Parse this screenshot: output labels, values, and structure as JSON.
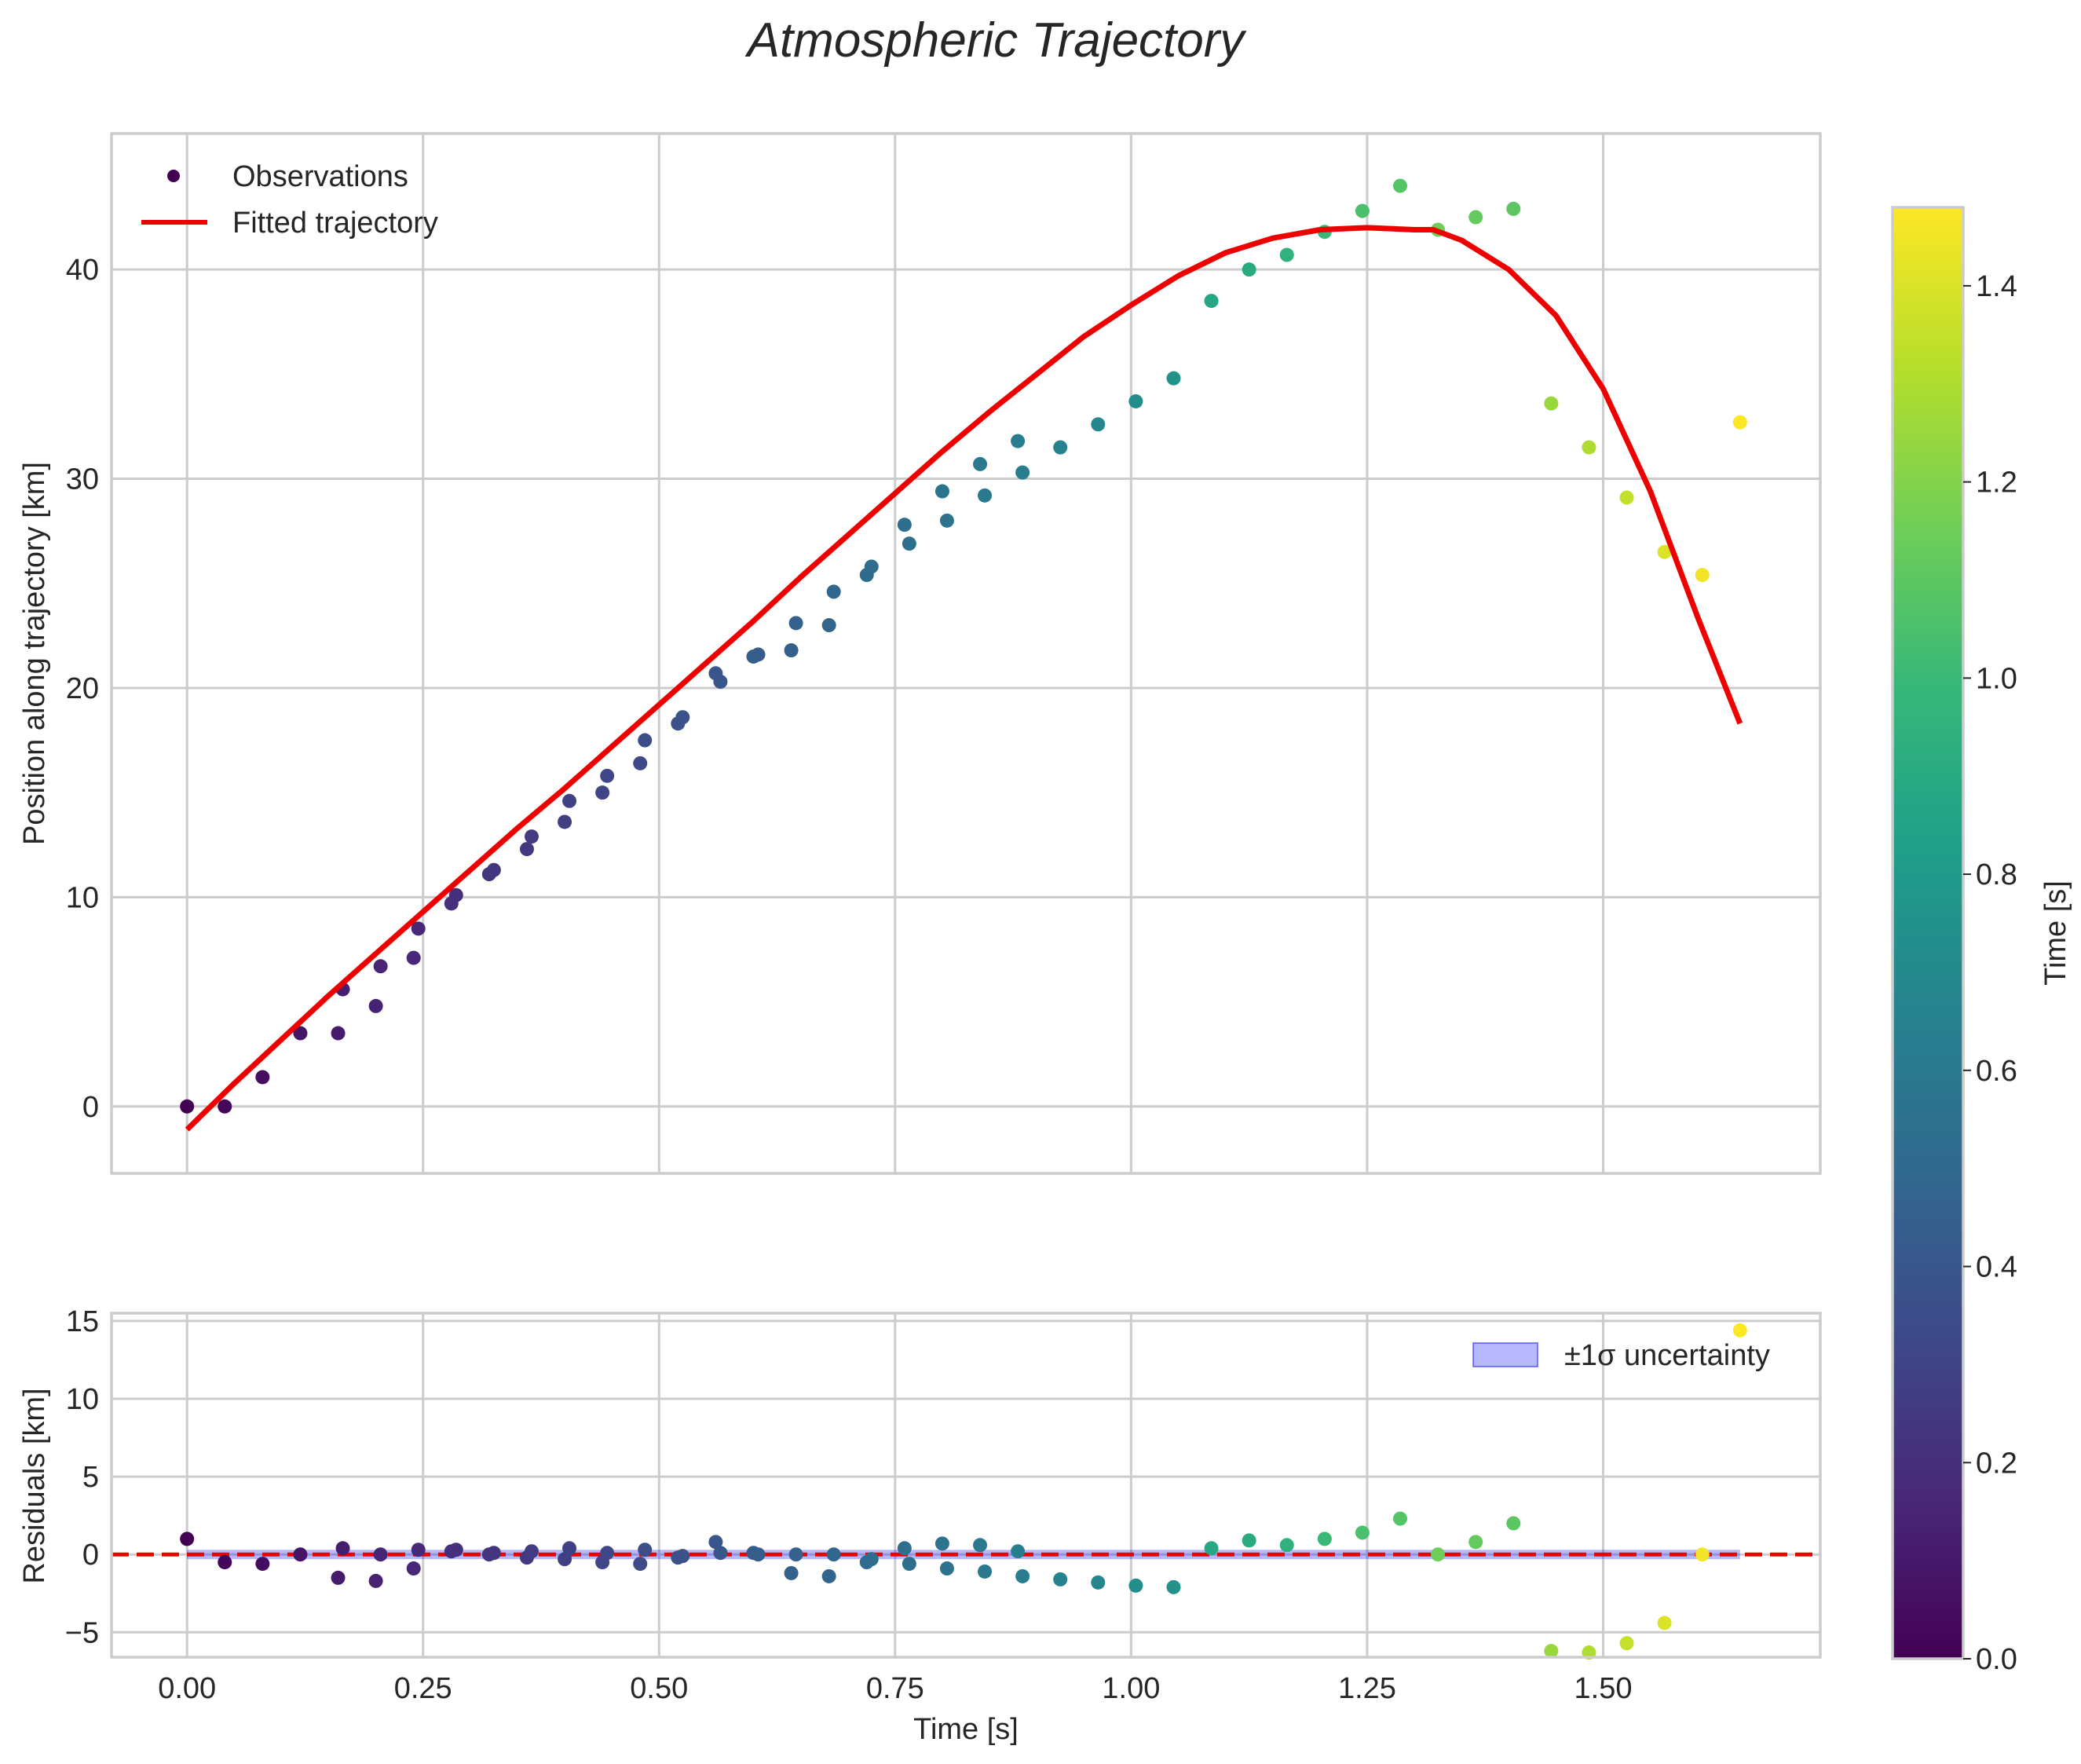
{
  "chart_data": [
    {
      "type": "scatter",
      "title": "Atmospheric Trajectory",
      "xlabel": "",
      "ylabel": "Position along trajectory [km]",
      "xlim": [
        -0.08,
        1.73
      ],
      "ylim": [
        -3.2,
        46.5
      ],
      "xticks": [
        0.0,
        0.25,
        0.5,
        0.75,
        1.0,
        1.25,
        1.5
      ],
      "yticks": [
        0,
        10,
        20,
        30,
        40
      ],
      "ytick_labels": [
        "0",
        "10",
        "20",
        "30",
        "40"
      ],
      "grid": true,
      "legend": {
        "position": "top-left",
        "entries": [
          "Observations",
          "Fitted trajectory"
        ]
      },
      "series": [
        {
          "name": "Observations",
          "kind": "scatter",
          "colormap": "viridis",
          "color_by": "time",
          "points": [
            [
              0.0,
              0.0,
              0.0
            ],
            [
              0.04,
              0.0,
              0.02
            ],
            [
              0.08,
              1.4,
              0.05
            ],
            [
              0.12,
              3.5,
              0.08
            ],
            [
              0.16,
              3.5,
              0.11
            ],
            [
              0.165,
              5.6,
              0.12
            ],
            [
              0.2,
              4.8,
              0.14
            ],
            [
              0.205,
              6.7,
              0.15
            ],
            [
              0.24,
              7.1,
              0.17
            ],
            [
              0.245,
              8.5,
              0.17
            ],
            [
              0.28,
              9.7,
              0.2
            ],
            [
              0.285,
              10.1,
              0.2
            ],
            [
              0.32,
              11.1,
              0.23
            ],
            [
              0.325,
              11.3,
              0.23
            ],
            [
              0.36,
              12.3,
              0.25
            ],
            [
              0.365,
              12.9,
              0.26
            ],
            [
              0.4,
              13.6,
              0.28
            ],
            [
              0.405,
              14.6,
              0.29
            ],
            [
              0.44,
              15.0,
              0.31
            ],
            [
              0.445,
              15.8,
              0.32
            ],
            [
              0.48,
              16.4,
              0.34
            ],
            [
              0.485,
              17.5,
              0.35
            ],
            [
              0.52,
              18.3,
              0.37
            ],
            [
              0.525,
              18.6,
              0.37
            ],
            [
              0.56,
              20.7,
              0.4
            ],
            [
              0.565,
              20.3,
              0.4
            ],
            [
              0.6,
              21.5,
              0.43
            ],
            [
              0.605,
              21.6,
              0.43
            ],
            [
              0.64,
              21.8,
              0.45
            ],
            [
              0.645,
              23.1,
              0.46
            ],
            [
              0.68,
              23.0,
              0.48
            ],
            [
              0.685,
              24.6,
              0.49
            ],
            [
              0.72,
              25.4,
              0.51
            ],
            [
              0.725,
              25.8,
              0.52
            ],
            [
              0.76,
              27.8,
              0.54
            ],
            [
              0.765,
              26.9,
              0.54
            ],
            [
              0.8,
              29.4,
              0.57
            ],
            [
              0.805,
              28.0,
              0.57
            ],
            [
              0.84,
              30.7,
              0.6
            ],
            [
              0.845,
              29.2,
              0.6
            ],
            [
              0.88,
              31.8,
              0.63
            ],
            [
              0.885,
              30.3,
              0.63
            ],
            [
              0.925,
              31.5,
              0.66
            ],
            [
              0.965,
              32.6,
              0.69
            ],
            [
              1.005,
              33.7,
              0.72
            ],
            [
              1.045,
              34.8,
              0.75
            ],
            [
              1.085,
              38.5,
              0.88
            ],
            [
              1.125,
              40.0,
              0.9
            ],
            [
              1.165,
              40.7,
              0.95
            ],
            [
              1.205,
              41.8,
              1.0
            ],
            [
              1.245,
              42.8,
              1.05
            ],
            [
              1.285,
              44.0,
              1.08
            ],
            [
              1.325,
              41.9,
              1.15
            ],
            [
              1.365,
              42.5,
              1.12
            ],
            [
              1.405,
              42.9,
              1.1
            ],
            [
              1.445,
              33.6,
              1.25
            ],
            [
              1.485,
              31.5,
              1.3
            ],
            [
              1.525,
              29.1,
              1.35
            ],
            [
              1.565,
              26.5,
              1.4
            ],
            [
              1.605,
              25.4,
              1.45
            ],
            [
              1.645,
              32.7,
              1.48
            ]
          ]
        },
        {
          "name": "Fitted trajectory",
          "kind": "line",
          "color": "#ee0000",
          "x": [
            0.0,
            0.05,
            0.1,
            0.15,
            0.2,
            0.25,
            0.3,
            0.35,
            0.4,
            0.45,
            0.5,
            0.55,
            0.6,
            0.65,
            0.7,
            0.75,
            0.8,
            0.85,
            0.9,
            0.95,
            1.0,
            1.05,
            1.1,
            1.15,
            1.2,
            1.25,
            1.3,
            1.32,
            1.35,
            1.4,
            1.45,
            1.5,
            1.55,
            1.6,
            1.645
          ],
          "y": [
            -1.1,
            1.1,
            3.2,
            5.3,
            7.3,
            9.3,
            11.3,
            13.3,
            15.2,
            17.2,
            19.2,
            21.2,
            23.2,
            25.3,
            27.3,
            29.3,
            31.3,
            33.2,
            35.0,
            36.8,
            38.3,
            39.7,
            40.8,
            41.5,
            41.9,
            42.0,
            41.9,
            41.9,
            41.4,
            40.0,
            37.8,
            34.3,
            29.4,
            23.4,
            18.3
          ]
        }
      ]
    },
    {
      "type": "scatter",
      "title": "",
      "xlabel": "Time [s]",
      "ylabel": "Residuals [km]",
      "xlim": [
        -0.08,
        1.73
      ],
      "ylim": [
        -6.6,
        15.5
      ],
      "xticks": [
        0.0,
        0.25,
        0.5,
        0.75,
        1.0,
        1.25,
        1.5
      ],
      "xtick_labels": [
        "0.00",
        "0.25",
        "0.50",
        "0.75",
        "1.00",
        "1.25",
        "1.50"
      ],
      "yticks": [
        -5,
        0,
        5,
        10,
        15
      ],
      "ytick_labels": [
        "−5",
        "0",
        "5",
        "10",
        "15"
      ],
      "grid": true,
      "legend": {
        "position": "top-right",
        "entries": [
          "±1σ uncertainty"
        ]
      },
      "band": {
        "name": "±1σ uncertainty",
        "low": -0.3,
        "high": 0.3,
        "color": "#0000ff",
        "opacity": 0.28
      },
      "zero_line": {
        "y": 0,
        "color": "#ee0000",
        "style": "dashed"
      },
      "series": [
        {
          "name": "Residuals",
          "kind": "scatter",
          "colormap": "viridis",
          "points": [
            [
              0.0,
              1.0,
              0.0
            ],
            [
              0.04,
              -0.5,
              0.02
            ],
            [
              0.08,
              -0.6,
              0.05
            ],
            [
              0.12,
              0.0,
              0.08
            ],
            [
              0.16,
              -1.5,
              0.11
            ],
            [
              0.165,
              0.4,
              0.12
            ],
            [
              0.2,
              -1.7,
              0.14
            ],
            [
              0.205,
              0.0,
              0.15
            ],
            [
              0.24,
              -0.9,
              0.17
            ],
            [
              0.245,
              0.3,
              0.17
            ],
            [
              0.28,
              0.2,
              0.2
            ],
            [
              0.285,
              0.3,
              0.2
            ],
            [
              0.32,
              0.0,
              0.23
            ],
            [
              0.325,
              0.1,
              0.23
            ],
            [
              0.36,
              -0.2,
              0.25
            ],
            [
              0.365,
              0.2,
              0.26
            ],
            [
              0.4,
              -0.3,
              0.28
            ],
            [
              0.405,
              0.4,
              0.29
            ],
            [
              0.44,
              -0.5,
              0.31
            ],
            [
              0.445,
              0.1,
              0.32
            ],
            [
              0.48,
              -0.6,
              0.34
            ],
            [
              0.485,
              0.3,
              0.35
            ],
            [
              0.52,
              -0.2,
              0.37
            ],
            [
              0.525,
              -0.1,
              0.37
            ],
            [
              0.56,
              0.8,
              0.4
            ],
            [
              0.565,
              0.1,
              0.4
            ],
            [
              0.6,
              0.1,
              0.43
            ],
            [
              0.605,
              0.0,
              0.43
            ],
            [
              0.64,
              -1.2,
              0.45
            ],
            [
              0.645,
              0.0,
              0.46
            ],
            [
              0.68,
              -1.4,
              0.48
            ],
            [
              0.685,
              0.0,
              0.49
            ],
            [
              0.72,
              -0.5,
              0.51
            ],
            [
              0.725,
              -0.3,
              0.52
            ],
            [
              0.76,
              0.4,
              0.54
            ],
            [
              0.765,
              -0.6,
              0.54
            ],
            [
              0.8,
              0.7,
              0.57
            ],
            [
              0.805,
              -0.9,
              0.57
            ],
            [
              0.84,
              0.6,
              0.6
            ],
            [
              0.845,
              -1.1,
              0.6
            ],
            [
              0.88,
              0.2,
              0.63
            ],
            [
              0.885,
              -1.4,
              0.63
            ],
            [
              0.925,
              -1.6,
              0.66
            ],
            [
              0.965,
              -1.8,
              0.69
            ],
            [
              1.005,
              -2.0,
              0.72
            ],
            [
              1.045,
              -2.1,
              0.75
            ],
            [
              1.085,
              0.4,
              0.88
            ],
            [
              1.125,
              0.9,
              0.9
            ],
            [
              1.165,
              0.6,
              0.95
            ],
            [
              1.205,
              1.0,
              1.0
            ],
            [
              1.245,
              1.4,
              1.05
            ],
            [
              1.285,
              2.3,
              1.08
            ],
            [
              1.325,
              0.0,
              1.15
            ],
            [
              1.365,
              0.8,
              1.12
            ],
            [
              1.405,
              2.0,
              1.1
            ],
            [
              1.445,
              -6.2,
              1.25
            ],
            [
              1.485,
              -6.3,
              1.3
            ],
            [
              1.525,
              -5.7,
              1.35
            ],
            [
              1.565,
              -4.4,
              1.4
            ],
            [
              1.605,
              0.0,
              1.45
            ],
            [
              1.645,
              14.4,
              1.48
            ]
          ]
        }
      ]
    },
    {
      "type": "colorbar",
      "label": "Time [s]",
      "colormap": "viridis",
      "range": [
        0.0,
        1.48
      ],
      "ticks": [
        0.0,
        0.2,
        0.4,
        0.6,
        0.8,
        1.0,
        1.2,
        1.4
      ],
      "tick_labels": [
        "0.0",
        "0.2",
        "0.4",
        "0.6",
        "0.8",
        "1.0",
        "1.2",
        "1.4"
      ]
    }
  ],
  "colors": {
    "viridis_stops": [
      "#440154",
      "#482878",
      "#3e4989",
      "#31688e",
      "#26828e",
      "#1f9e89",
      "#35b779",
      "#6ece58",
      "#b5de2b",
      "#fde725"
    ],
    "fit_line": "#ee0000",
    "band": "#0000ff"
  }
}
